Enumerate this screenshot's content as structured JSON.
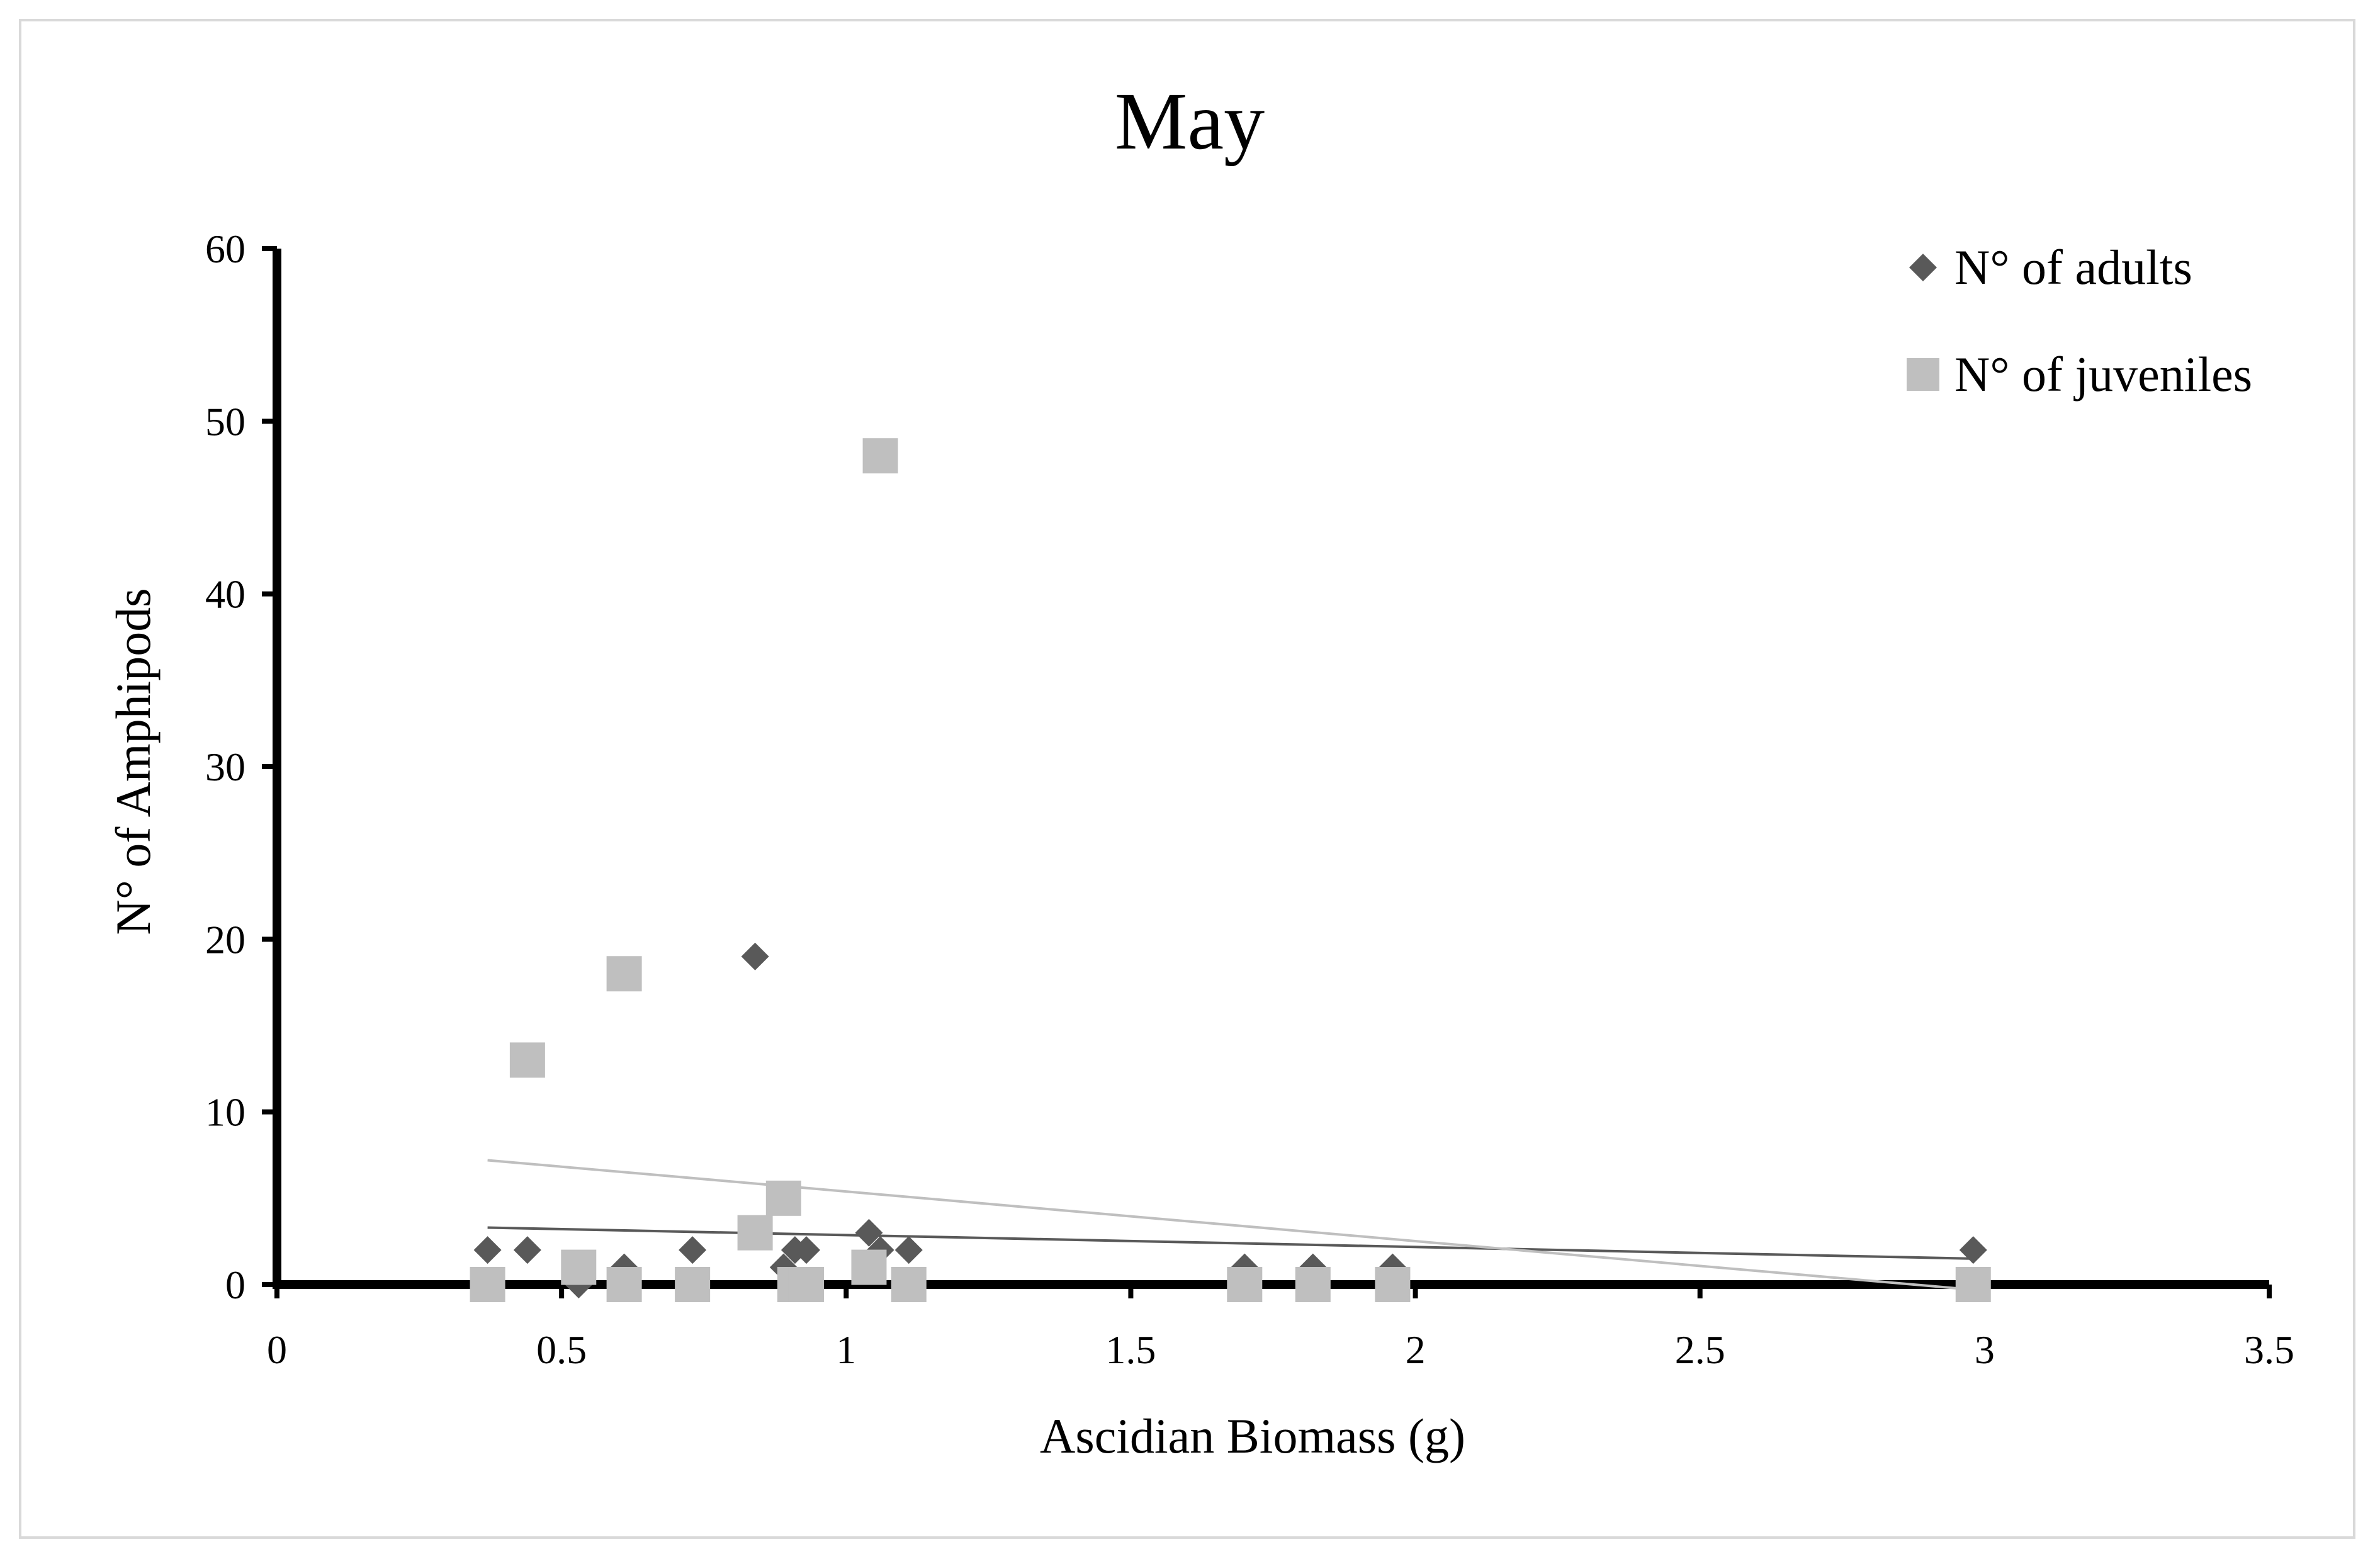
{
  "chart_data": {
    "type": "scatter",
    "title": "May",
    "xlabel": "Ascidian Biomass (g)",
    "ylabel": "N° of Amphipods",
    "xlim": [
      0,
      3.5
    ],
    "ylim": [
      0,
      60
    ],
    "x_ticks": [
      "0",
      "0.5",
      "1",
      "1.5",
      "2",
      "2.5",
      "3",
      "3.5"
    ],
    "y_ticks": [
      "0",
      "10",
      "20",
      "30",
      "40",
      "50",
      "60"
    ],
    "grid": false,
    "legend_position": "top-right",
    "series": [
      {
        "name": "N° of adults",
        "marker": "diamond",
        "color": "#595959",
        "x": [
          0.37,
          0.44,
          0.53,
          0.61,
          0.73,
          0.84,
          0.89,
          0.91,
          0.93,
          1.04,
          1.06,
          1.11,
          1.7,
          1.82,
          1.96,
          2.98
        ],
        "y": [
          2,
          2,
          0,
          1,
          2,
          19,
          1,
          2,
          2,
          3,
          2,
          2,
          1,
          1,
          1,
          2
        ],
        "trendline": {
          "x": [
            0.37,
            2.98
          ],
          "y": [
            3.3,
            1.5
          ],
          "color": "#595959"
        }
      },
      {
        "name": "N° of juveniles",
        "marker": "square",
        "color": "#bfbfbf",
        "x": [
          0.37,
          0.44,
          0.53,
          0.61,
          0.61,
          0.73,
          0.84,
          0.89,
          0.91,
          0.93,
          1.04,
          1.06,
          1.11,
          1.7,
          1.82,
          1.96,
          2.98
        ],
        "y": [
          0,
          13,
          1,
          18,
          0,
          0,
          3,
          5,
          0,
          0,
          1,
          48,
          0,
          0,
          0,
          0,
          0
        ],
        "trendline": {
          "x": [
            0.37,
            2.98
          ],
          "y": [
            7.2,
            -0.3
          ],
          "color": "#bfbfbf"
        }
      }
    ]
  }
}
